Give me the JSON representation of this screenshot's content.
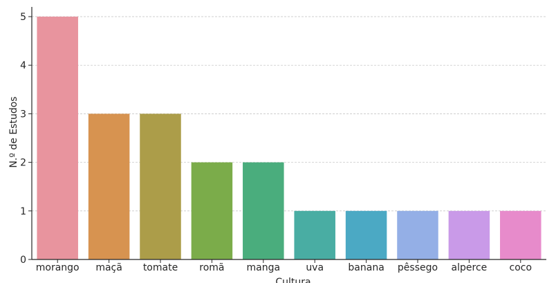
{
  "chart_data": {
    "type": "bar",
    "title": "",
    "xlabel": "Cultura",
    "ylabel": "N.º de Estudos",
    "categories": [
      "morango",
      "maçã",
      "tomate",
      "romã",
      "manga",
      "uva",
      "banana",
      "pêssego",
      "alperce",
      "coco"
    ],
    "values": [
      5,
      3,
      3,
      2,
      2,
      1,
      1,
      1,
      1,
      1
    ],
    "colors": [
      "#E8949E",
      "#D79350",
      "#AC9D49",
      "#7BAC4A",
      "#4AAD7D",
      "#49ADA3",
      "#4BA9C4",
      "#94AFE6",
      "#C99AE8",
      "#E78BCB"
    ],
    "ylim": [
      0,
      5.2
    ],
    "yticks": [
      0,
      1,
      2,
      3,
      4,
      5
    ],
    "grid": "y-dashed",
    "legend": "none"
  }
}
